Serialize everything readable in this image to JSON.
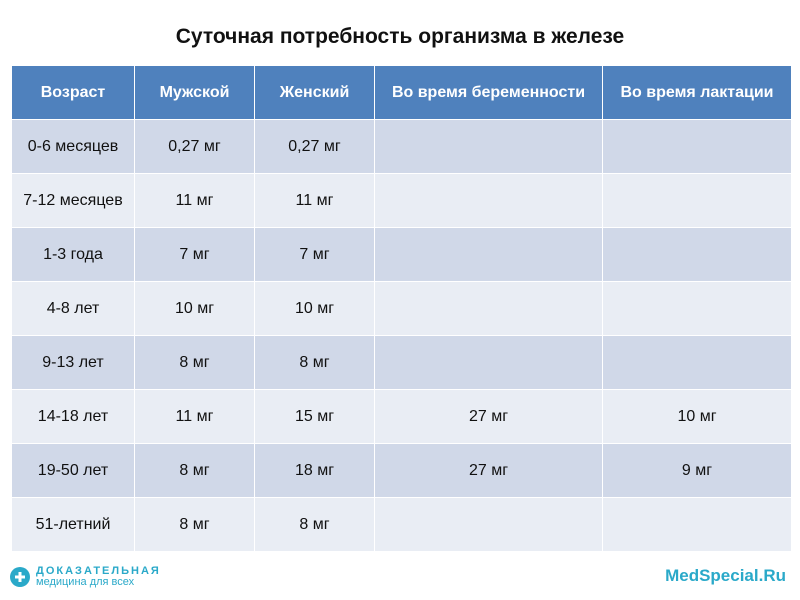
{
  "title": "Суточная потребность организма в железе",
  "table": {
    "headers": [
      "Возраст",
      "Мужской",
      "Женский",
      "Во время беременности",
      "Во время лактации"
    ],
    "rows": [
      [
        "0-6 месяцев",
        "0,27 мг",
        "0,27 мг",
        "",
        ""
      ],
      [
        "7-12 месяцев",
        "11 мг",
        "11 мг",
        "",
        ""
      ],
      [
        "1-3 года",
        "7 мг",
        "7 мг",
        "",
        ""
      ],
      [
        "4-8 лет",
        "10 мг",
        "10 мг",
        "",
        ""
      ],
      [
        "9-13 лет",
        "8 мг",
        "8 мг",
        "",
        ""
      ],
      [
        "14-18 лет",
        "11 мг",
        "15 мг",
        "27 мг",
        "10 мг"
      ],
      [
        "19-50 лет",
        "8 мг",
        "18 мг",
        "27 мг",
        "9 мг"
      ],
      [
        "51-летний",
        "8 мг",
        "8 мг",
        "",
        ""
      ]
    ]
  },
  "footer": {
    "logo_line1": "ДОКАЗАТЕЛЬНАЯ",
    "logo_line2": "медицина для всех",
    "site": "MedSpecial.Ru"
  },
  "colors": {
    "header_bg": "#4f81bd",
    "row_odd": "#d0d8e8",
    "row_even": "#e9edf4",
    "brand": "#2aa9c9"
  }
}
